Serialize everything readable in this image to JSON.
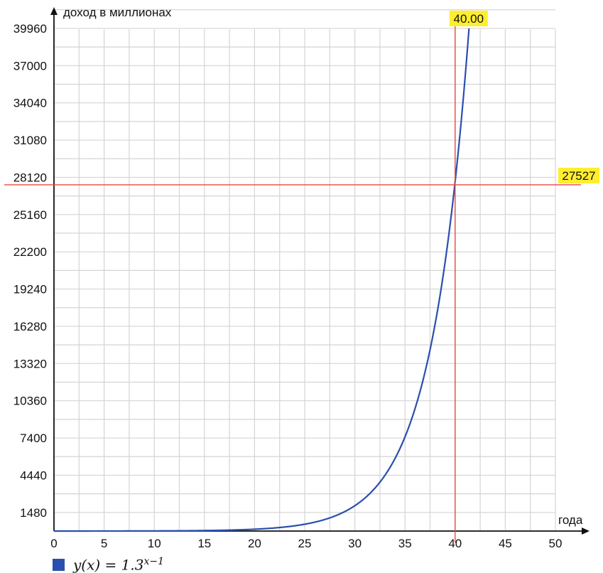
{
  "chart_data": {
    "type": "line",
    "ylabel": "доход в миллионах",
    "xlabel": "года",
    "xlim": [
      0,
      50
    ],
    "ylim": [
      0,
      41280
    ],
    "x_ticks": [
      0,
      5,
      10,
      15,
      20,
      25,
      30,
      35,
      40,
      45,
      50
    ],
    "x_tick_labels": [
      "0",
      "5",
      "10",
      "15",
      "20",
      "25",
      "30",
      "35",
      "40",
      "45",
      "50"
    ],
    "y_ticks": [
      1480,
      4440,
      7400,
      10360,
      13320,
      16280,
      19240,
      22200,
      25160,
      28120,
      31080,
      34040,
      37000,
      39960
    ],
    "y_tick_labels": [
      "1480",
      "4440",
      "7400",
      "10360",
      "13320",
      "16280",
      "19240",
      "22200",
      "25160",
      "28120",
      "31080",
      "34040",
      "37000",
      "39960"
    ],
    "grid": true,
    "series": [
      {
        "name": "y(x) = 1.3^{x−1}",
        "formula": "1.3^(x-1)",
        "color": "#2a4fae",
        "x": [
          0,
          5,
          10,
          15,
          20,
          25,
          28,
          30,
          32,
          34,
          35,
          36,
          37,
          38,
          39,
          40,
          41,
          41.35
        ],
        "y": [
          0.77,
          2.86,
          10.6,
          39.4,
          146,
          543,
          1192,
          2015,
          3405,
          5755,
          7482,
          9726,
          12644,
          16437,
          21368,
          27527,
          36118,
          39960
        ]
      }
    ],
    "marker": {
      "x": 40,
      "y": 27527,
      "x_label": "40.00",
      "y_label": "27527",
      "line_color": "#e8483e",
      "badge_color": "#ffee2e"
    },
    "legend": {
      "position": "bottom-left",
      "label": "y(x) = 1.3^(x−1)",
      "label_base": "y(x) = 1.3",
      "label_exp": "x−1"
    }
  }
}
